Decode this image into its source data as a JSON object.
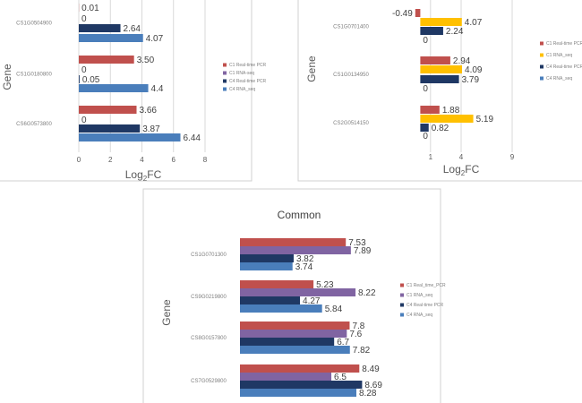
{
  "figure": {
    "panel_titles": [
      "",
      "",
      "Common"
    ]
  },
  "chart_data": [
    {
      "type": "bar",
      "title": "",
      "xlabel": "Log2FC",
      "ylabel": "Gene",
      "xlim": [
        0,
        8
      ],
      "x_ticks": [
        "0",
        "2",
        "4",
        "6",
        "8"
      ],
      "grid": true,
      "legend_position": "right",
      "categories": [
        "CS1G0504900",
        "CS1G0180800",
        "CS6G0573800"
      ],
      "series": [
        {
          "name": "C1 Real-time PCR",
          "color": "#c0504d",
          "values": [
            0.01,
            3.5,
            3.66
          ],
          "labels": [
            "0.01",
            "3.50",
            "3.66"
          ]
        },
        {
          "name": "C1 RNA-seq",
          "color": "#8064a2",
          "values": [
            0,
            0,
            0
          ],
          "labels": [
            "0",
            "0",
            "0"
          ]
        },
        {
          "name": "C4 Real-time PCR",
          "color": "#1f3864",
          "values": [
            2.64,
            0.05,
            3.87
          ],
          "labels": [
            "2.64",
            "0.05",
            "3.87"
          ]
        },
        {
          "name": "C4 RNA_seq",
          "color": "#4a7ebb",
          "values": [
            4.07,
            4.4,
            6.44
          ],
          "labels": [
            "4.07",
            "4.4",
            "6.44"
          ]
        }
      ]
    },
    {
      "type": "bar",
      "title": "",
      "xlabel": "Log2FC",
      "ylabel": "Gene",
      "xlim": [
        -1,
        9
      ],
      "x_ticks": [
        "1",
        "4",
        "9"
      ],
      "grid": true,
      "legend_position": "right",
      "categories": [
        "CS1G0701400",
        "CS1G0134950",
        "CS2G0514150"
      ],
      "series": [
        {
          "name": "C1 Real-time PCR",
          "color": "#c0504d",
          "values": [
            -0.49,
            2.94,
            1.88
          ],
          "labels": [
            "-0.49",
            "2.94",
            "1.88"
          ]
        },
        {
          "name": "C1 RNA_seq",
          "color": "#ffc000",
          "values": [
            4.07,
            4.09,
            5.19
          ],
          "labels": [
            "4.07",
            "4.09",
            "5.19"
          ]
        },
        {
          "name": "C4 Real-time PCR",
          "color": "#1f3864",
          "values": [
            2.24,
            3.79,
            0.82
          ],
          "labels": [
            "2.24",
            "3.79",
            "0.82"
          ]
        },
        {
          "name": "C4 RNA_seq",
          "color": "#4a7ebb",
          "values": [
            0,
            0,
            0
          ],
          "labels": [
            "0",
            "0",
            "0"
          ]
        }
      ]
    },
    {
      "type": "bar",
      "title": "Common",
      "xlabel": "",
      "ylabel": "Gene",
      "xlim": [
        0,
        10
      ],
      "x_ticks": [],
      "grid": false,
      "legend_position": "right",
      "categories": [
        "CS1G0701300",
        "CS9G0219800",
        "CS8G0157800",
        "CS7G0529800"
      ],
      "series": [
        {
          "name": "C1 Real_time_PCR",
          "color": "#c0504d",
          "values": [
            7.53,
            5.23,
            7.8,
            8.49
          ],
          "labels": [
            "7.53",
            "5.23",
            "7.8",
            "8.49"
          ]
        },
        {
          "name": "C1 RNA_seq",
          "color": "#8064a2",
          "values": [
            7.89,
            8.22,
            7.6,
            6.5
          ],
          "labels": [
            "7.89",
            "8.22",
            "7.6",
            "6.5"
          ]
        },
        {
          "name": "C4 Real-time PCR",
          "color": "#1f3864",
          "values": [
            3.82,
            4.27,
            6.7,
            8.69
          ],
          "labels": [
            "3.82",
            "4.27",
            "6.7",
            "8.69"
          ]
        },
        {
          "name": "C4 RNA_seq",
          "color": "#4a7ebb",
          "values": [
            3.74,
            5.84,
            7.82,
            8.28
          ],
          "labels": [
            "3.74",
            "5.84",
            "7.82",
            "8.28"
          ]
        }
      ]
    }
  ]
}
